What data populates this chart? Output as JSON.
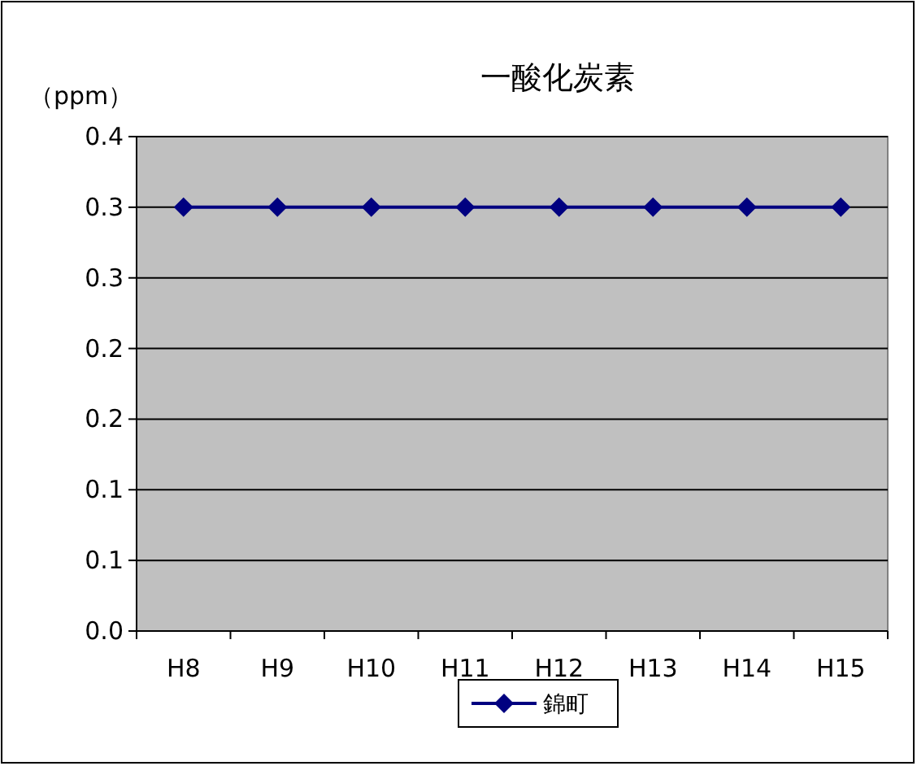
{
  "chart_data": {
    "type": "line",
    "title": "一酸化炭素",
    "ylabel": "（ppm）",
    "categories": [
      "H8",
      "H9",
      "H10",
      "H11",
      "H12",
      "H13",
      "H14",
      "H15"
    ],
    "series": [
      {
        "name": "錦町",
        "color": "#000080",
        "values": [
          0.3,
          0.3,
          0.3,
          0.3,
          0.3,
          0.3,
          0.3,
          0.3
        ]
      }
    ],
    "ylim": [
      0,
      0.35
    ],
    "yticks": [
      {
        "value": 0,
        "label": "0.0"
      },
      {
        "value": 0.05,
        "label": "0.1"
      },
      {
        "value": 0.1,
        "label": "0.1"
      },
      {
        "value": 0.15,
        "label": "0.2"
      },
      {
        "value": 0.2,
        "label": "0.2"
      },
      {
        "value": 0.25,
        "label": "0.3"
      },
      {
        "value": 0.3,
        "label": "0.3"
      },
      {
        "value": 0.35,
        "label": "0.4"
      }
    ],
    "grid": "y",
    "legend": "bottom",
    "marker": "diamond",
    "line_style": "solid"
  }
}
